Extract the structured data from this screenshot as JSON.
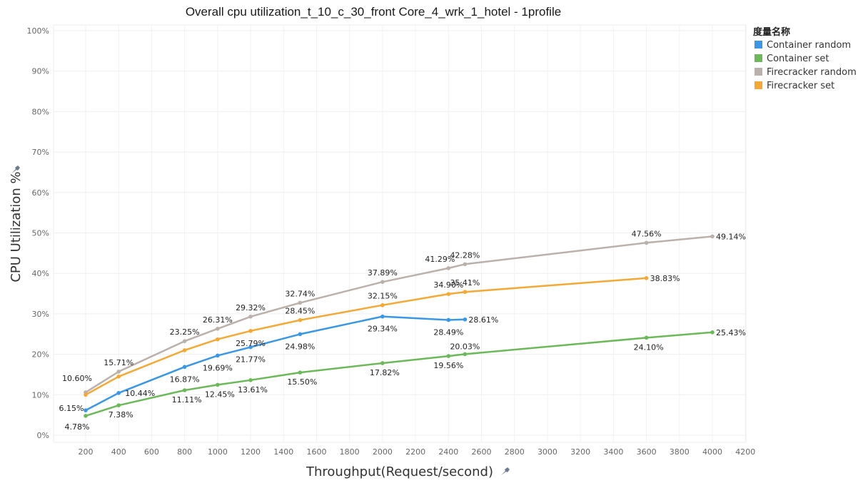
{
  "chart_data": {
    "type": "line",
    "title": "Overall cpu utilization_t_10_c_30_front Core_4_wrk_1_hotel - 1profile",
    "xlabel": "Throughput(Request/second)",
    "ylabel": "CPU Utilization %",
    "xlim": [
      0,
      4200
    ],
    "ylim": [
      0,
      100
    ],
    "x_ticks": [
      "200",
      "400",
      "600",
      "800",
      "1000",
      "1200",
      "1400",
      "1600",
      "1800",
      "2000",
      "2200",
      "2400",
      "2600",
      "2800",
      "3000",
      "3200",
      "3400",
      "3600",
      "3800",
      "4000",
      "4200"
    ],
    "y_ticks": [
      "0%",
      "10%",
      "20%",
      "30%",
      "40%",
      "50%",
      "60%",
      "70%",
      "80%",
      "90%",
      "100%"
    ],
    "legend_title": "度量名称",
    "legend_position": "top-right",
    "grid": true,
    "series": [
      {
        "name": "Container random",
        "color": "#3a97e6",
        "x": [
          200,
          400,
          800,
          1000,
          1200,
          1500,
          2000,
          2400,
          2500
        ],
        "values": [
          6.15,
          10.44,
          16.87,
          19.69,
          21.77,
          24.98,
          29.34,
          28.49,
          28.61
        ],
        "labels": [
          "6.15%",
          "10.44%",
          "16.87%",
          "19.69%",
          "21.77%",
          "24.98%",
          "29.34%",
          "28.49%",
          "28.61%"
        ]
      },
      {
        "name": "Container set",
        "color": "#6cb95a",
        "x": [
          200,
          400,
          800,
          1000,
          1200,
          1500,
          2000,
          2400,
          2500,
          3600,
          4000
        ],
        "values": [
          4.78,
          7.38,
          11.11,
          12.45,
          13.61,
          15.5,
          17.82,
          19.56,
          20.03,
          24.1,
          25.43
        ],
        "labels": [
          "4.78%",
          "7.38%",
          "11.11%",
          "12.45%",
          "13.61%",
          "15.50%",
          "17.82%",
          "19.56%",
          "20.03%",
          "24.10%",
          "25.43%"
        ]
      },
      {
        "name": "Firecracker random",
        "color": "#bbb1ac",
        "x": [
          200,
          400,
          800,
          1000,
          1200,
          1500,
          2000,
          2400,
          2500,
          3600,
          4000
        ],
        "values": [
          10.6,
          15.71,
          23.25,
          26.31,
          29.32,
          32.74,
          37.89,
          41.29,
          42.28,
          47.56,
          49.14
        ],
        "labels": [
          "10.60%",
          "15.71%",
          "23.25%",
          "26.31%",
          "29.32%",
          "32.74%",
          "37.89%",
          "41.29%",
          "42.28%",
          "47.56%",
          "49.14%"
        ]
      },
      {
        "name": "Firecracker set",
        "color": "#f5a833",
        "x": [
          200,
          400,
          800,
          1000,
          1200,
          1500,
          2000,
          2400,
          2500,
          3600
        ],
        "values": [
          10.0,
          14.5,
          21.0,
          23.7,
          25.79,
          28.45,
          32.15,
          34.9,
          35.41,
          38.83
        ],
        "labels": [
          "",
          "",
          "",
          "",
          "25.79%",
          "28.45%",
          "32.15%",
          "34.90%",
          "35.41%",
          "38.83%"
        ]
      }
    ]
  }
}
